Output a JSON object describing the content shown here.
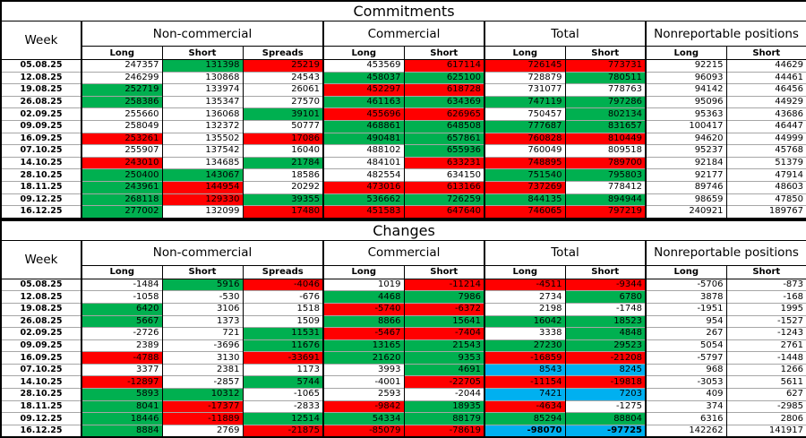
{
  "titles": {
    "commitments": "Commitments",
    "changes": "Changes"
  },
  "columns": {
    "week_label": "Week",
    "groups": [
      {
        "label": "Non-commercial",
        "cols": [
          "Long",
          "Short",
          "Spreads"
        ]
      },
      {
        "label": "Commercial",
        "cols": [
          "Long",
          "Short"
        ]
      },
      {
        "label": "Total",
        "cols": [
          "Long",
          "Short"
        ]
      },
      {
        "label": "Nonreportable positions",
        "cols": [
          "Long",
          "Short"
        ]
      }
    ]
  },
  "colors": {
    "green": "#00B050",
    "red": "#FF0000",
    "blue": "#00B0F0",
    "grid": "#a6a6a6"
  },
  "commitments_rows": [
    {
      "week": "05.08.25",
      "values": [
        247357,
        131398,
        25219,
        453569,
        617114,
        726145,
        773731,
        92215,
        44629
      ],
      "colors": [
        "w",
        "g",
        "r",
        "w",
        "r",
        "r",
        "r",
        "w",
        "w"
      ]
    },
    {
      "week": "12.08.25",
      "values": [
        246299,
        130868,
        24543,
        458037,
        625100,
        728879,
        780511,
        96093,
        44461
      ],
      "colors": [
        "w",
        "w",
        "w",
        "g",
        "g",
        "w",
        "g",
        "w",
        "w"
      ]
    },
    {
      "week": "19.08.25",
      "values": [
        252719,
        133974,
        26061,
        452297,
        618728,
        731077,
        778763,
        94142,
        46456
      ],
      "colors": [
        "g",
        "w",
        "w",
        "r",
        "r",
        "w",
        "w",
        "w",
        "w"
      ]
    },
    {
      "week": "26.08.25",
      "values": [
        258386,
        135347,
        27570,
        461163,
        634369,
        747119,
        797286,
        95096,
        44929
      ],
      "colors": [
        "g",
        "w",
        "w",
        "g",
        "g",
        "g",
        "g",
        "w",
        "w"
      ]
    },
    {
      "week": "02.09.25",
      "values": [
        255660,
        136068,
        39101,
        455696,
        626965,
        750457,
        802134,
        95363,
        43686
      ],
      "colors": [
        "w",
        "w",
        "g",
        "r",
        "r",
        "w",
        "g",
        "w",
        "w"
      ]
    },
    {
      "week": "09.09.25",
      "values": [
        258049,
        132372,
        50777,
        468861,
        648508,
        777687,
        831657,
        100417,
        46447
      ],
      "colors": [
        "w",
        "w",
        "w",
        "g",
        "g",
        "g",
        "g",
        "w",
        "w"
      ]
    },
    {
      "week": "16.09.25",
      "values": [
        253261,
        135502,
        17086,
        490481,
        657861,
        760828,
        810449,
        94620,
        44999
      ],
      "colors": [
        "r",
        "w",
        "r",
        "g",
        "g",
        "r",
        "r",
        "w",
        "w"
      ]
    },
    {
      "week": "07.10.25",
      "values": [
        255907,
        137542,
        16040,
        488102,
        655936,
        760049,
        809518,
        95237,
        45768
      ],
      "colors": [
        "w",
        "w",
        "w",
        "w",
        "g",
        "w",
        "w",
        "w",
        "w"
      ]
    },
    {
      "week": "14.10.25",
      "values": [
        243010,
        134685,
        21784,
        484101,
        633231,
        748895,
        789700,
        92184,
        51379
      ],
      "colors": [
        "r",
        "w",
        "g",
        "w",
        "r",
        "r",
        "r",
        "w",
        "w"
      ]
    },
    {
      "week": "28.10.25",
      "values": [
        250400,
        143067,
        18586,
        482554,
        634150,
        751540,
        795803,
        92177,
        47914
      ],
      "colors": [
        "g",
        "g",
        "w",
        "w",
        "w",
        "g",
        "g",
        "w",
        "w"
      ]
    },
    {
      "week": "18.11.25",
      "values": [
        243961,
        144954,
        20292,
        473016,
        613166,
        737269,
        778412,
        89746,
        48603
      ],
      "colors": [
        "g",
        "r",
        "w",
        "r",
        "r",
        "r",
        "w",
        "w",
        "w"
      ]
    },
    {
      "week": "09.12.25",
      "values": [
        268118,
        129330,
        39355,
        536662,
        726259,
        844135,
        894944,
        98659,
        47850
      ],
      "colors": [
        "g",
        "r",
        "g",
        "g",
        "g",
        "g",
        "g",
        "w",
        "w"
      ]
    },
    {
      "week": "16.12.25",
      "values": [
        277002,
        132099,
        17480,
        451583,
        647640,
        746065,
        797219,
        240921,
        189767
      ],
      "colors": [
        "g",
        "w",
        "r",
        "r",
        "r",
        "r",
        "r",
        "w",
        "w"
      ]
    }
  ],
  "changes_rows": [
    {
      "week": "05.08.25",
      "values": [
        -1484,
        5916,
        -4046,
        1019,
        -11214,
        -4511,
        -9344,
        -5706,
        -873
      ],
      "colors": [
        "w",
        "g",
        "r",
        "w",
        "r",
        "r",
        "r",
        "w",
        "w"
      ]
    },
    {
      "week": "12.08.25",
      "values": [
        -1058,
        -530,
        -676,
        4468,
        7986,
        2734,
        6780,
        3878,
        -168
      ],
      "colors": [
        "w",
        "w",
        "w",
        "g",
        "g",
        "w",
        "g",
        "w",
        "w"
      ]
    },
    {
      "week": "19.08.25",
      "values": [
        6420,
        3106,
        1518,
        -5740,
        -6372,
        2198,
        -1748,
        -1951,
        1995
      ],
      "colors": [
        "g",
        "w",
        "w",
        "r",
        "r",
        "w",
        "w",
        "w",
        "w"
      ]
    },
    {
      "week": "26.08.25",
      "values": [
        5667,
        1373,
        1509,
        8866,
        15641,
        16042,
        18523,
        954,
        -1527
      ],
      "colors": [
        "g",
        "w",
        "w",
        "g",
        "g",
        "g",
        "g",
        "w",
        "w"
      ]
    },
    {
      "week": "02.09.25",
      "values": [
        -2726,
        721,
        11531,
        -5467,
        -7404,
        3338,
        4848,
        267,
        -1243
      ],
      "colors": [
        "w",
        "w",
        "g",
        "r",
        "r",
        "w",
        "g",
        "w",
        "w"
      ]
    },
    {
      "week": "09.09.25",
      "values": [
        2389,
        -3696,
        11676,
        13165,
        21543,
        27230,
        29523,
        5054,
        2761
      ],
      "colors": [
        "w",
        "w",
        "g",
        "g",
        "g",
        "g",
        "g",
        "w",
        "w"
      ]
    },
    {
      "week": "16.09.25",
      "values": [
        -4788,
        3130,
        -33691,
        21620,
        9353,
        -16859,
        -21208,
        -5797,
        -1448
      ],
      "colors": [
        "r",
        "w",
        "r",
        "g",
        "g",
        "r",
        "r",
        "w",
        "w"
      ]
    },
    {
      "week": "07.10.25",
      "values": [
        3377,
        2381,
        1173,
        3993,
        4691,
        8543,
        8245,
        968,
        1266
      ],
      "colors": [
        "w",
        "w",
        "w",
        "w",
        "g",
        "b",
        "b",
        "w",
        "w"
      ]
    },
    {
      "week": "14.10.25",
      "values": [
        -12897,
        -2857,
        5744,
        -4001,
        -22705,
        -11154,
        -19818,
        -3053,
        5611
      ],
      "colors": [
        "r",
        "w",
        "g",
        "w",
        "r",
        "r",
        "r",
        "w",
        "w"
      ]
    },
    {
      "week": "28.10.25",
      "values": [
        5893,
        10312,
        -1065,
        2593,
        -2044,
        7421,
        7203,
        409,
        627
      ],
      "colors": [
        "g",
        "g",
        "w",
        "w",
        "w",
        "b",
        "b",
        "w",
        "w"
      ]
    },
    {
      "week": "18.11.25",
      "values": [
        8041,
        -17377,
        -2833,
        -9842,
        18935,
        -4634,
        -1275,
        374,
        -2985
      ],
      "colors": [
        "g",
        "r",
        "w",
        "r",
        "g",
        "r",
        "w",
        "w",
        "w"
      ]
    },
    {
      "week": "09.12.25",
      "values": [
        18446,
        -11889,
        12514,
        54334,
        88179,
        85294,
        88804,
        6316,
        2806
      ],
      "colors": [
        "g",
        "r",
        "g",
        "g",
        "g",
        "g",
        "g",
        "w",
        "w"
      ]
    },
    {
      "week": "16.12.25",
      "values": [
        8884,
        2769,
        -21875,
        -85079,
        -78619,
        -98070,
        -97725,
        142262,
        141917
      ],
      "colors": [
        "g",
        "w",
        "r",
        "r",
        "r",
        "b",
        "b",
        "w",
        "w"
      ],
      "bold": [
        5,
        6
      ]
    }
  ]
}
